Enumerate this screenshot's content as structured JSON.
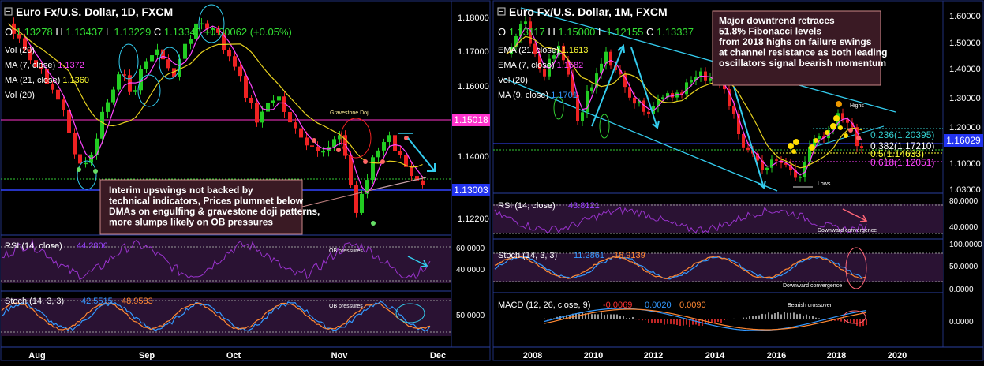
{
  "left": {
    "title": "Euro Fx/U.S. Dollar, 1D, FXCM",
    "ohlc": {
      "o_label": "O",
      "o": "1.13278",
      "h_label": "H",
      "h": "1.13437",
      "l_label": "L",
      "l": "1.13229",
      "c_label": "C",
      "c": "1.13340",
      "chg": "+0.00062 (+0.05%)"
    },
    "indicators": [
      {
        "label": "Vol (20)",
        "value": "",
        "color": "#ffffff"
      },
      {
        "label": "MA (7, close)",
        "value": "1.1372",
        "color": "#ff44ff"
      },
      {
        "label": "MA (21, close)",
        "value": "1.1360",
        "color": "#ffff33"
      },
      {
        "label": "Vol (20)",
        "value": "",
        "color": "#ffffff"
      }
    ],
    "price_axis": [
      "1.18000",
      "1.17000",
      "1.16000",
      "1.15000",
      "1.14000",
      "1.13000",
      "1.12200"
    ],
    "price_tags": {
      "resistance": "1.15018",
      "support": "1.13003"
    },
    "time_axis": [
      "Aug",
      "Sep",
      "Oct",
      "Nov",
      "Dec"
    ],
    "annotation": "Interim upswings not backed by technical indicators, Prices plummet below DMAs on engulfing & gravestone doji patterns, more slumps likely on OB pressures",
    "labels": {
      "gravestone": "Gravestone Doji",
      "ob1": "OB pressures",
      "ob2": "OB pressures"
    },
    "rsi": {
      "label": "RSI (14, close)",
      "value": "44.2806",
      "axis": [
        "60.0000",
        "40.0000"
      ]
    },
    "stoch": {
      "label": "Stoch (14, 3, 3)",
      "k": "42.5515",
      "d": "48.9583",
      "axis": [
        "50.0000"
      ]
    }
  },
  "right": {
    "title": "Euro Fx/U.S. Dollar, 1M, FXCM",
    "ohlc": {
      "o_label": "O",
      "o": "1.13117",
      "h_label": "H",
      "h": "1.15000",
      "l_label": "L",
      "l": "1.12155",
      "c_label": "C",
      "c": "1.13337"
    },
    "indicators": [
      {
        "label": "EMA (21, close)",
        "value": "1.1613",
        "color": "#ffff33"
      },
      {
        "label": "EMA (7, close)",
        "value": "1.1582",
        "color": "#ff44ff"
      },
      {
        "label": "Vol (20)",
        "value": "",
        "color": "#ffffff"
      },
      {
        "label": "MA (9, close)",
        "value": "1.1701",
        "color": "#3399ff"
      }
    ],
    "price_axis": [
      "1.60000",
      "1.50000",
      "1.40000",
      "1.30000",
      "1.20000",
      "1.10000",
      "1.03000"
    ],
    "price_tag": "1.16029",
    "fib": [
      {
        "label": "0.236(1.20395)",
        "color": "#33cccc"
      },
      {
        "label": "0.382(1.17210)",
        "color": "#ffffff"
      },
      {
        "label": "0.5(1.14633)",
        "color": "#ffff33"
      },
      {
        "label": "0.618(1.12051)",
        "color": "#ff44ff"
      }
    ],
    "time_axis": [
      "2008",
      "2010",
      "2012",
      "2014",
      "2016",
      "2018",
      "2020"
    ],
    "annotation": "Major downtrend retraces 51.8% Fibonacci levels from 2018 highs on failure swings at channel resistance as both leading oscillators signal bearish momentum",
    "labels": {
      "highs": "Highs",
      "lows": "Lows",
      "rsi_div": "Downward convergence",
      "stoch_div": "Downward convergence",
      "macd_cross": "Bearish crossover"
    },
    "rsi": {
      "label": "RSI (14, close)",
      "value": "43.8121",
      "axis": [
        "80.0000",
        "40.0000"
      ]
    },
    "stoch": {
      "label": "Stoch (14, 3, 3)",
      "k": "11.2861",
      "d": "18.9139",
      "axis": [
        "100.0000",
        "50.0000",
        "0.0000"
      ]
    },
    "macd": {
      "label": "MACD (12, 26, close, 9)",
      "hist": "-0.0069",
      "macd": "0.0020",
      "signal": "0.0090",
      "axis": [
        "0.0000"
      ]
    }
  },
  "colors": {
    "bull": "#22cc22",
    "bear": "#ee2222",
    "ma_fast": "#ff44ff",
    "ma_slow": "#ffff33",
    "channel": "#33ccee",
    "osc_bg": "#2a1233",
    "k_line": "#3399ff",
    "d_line": "#ff8833"
  }
}
